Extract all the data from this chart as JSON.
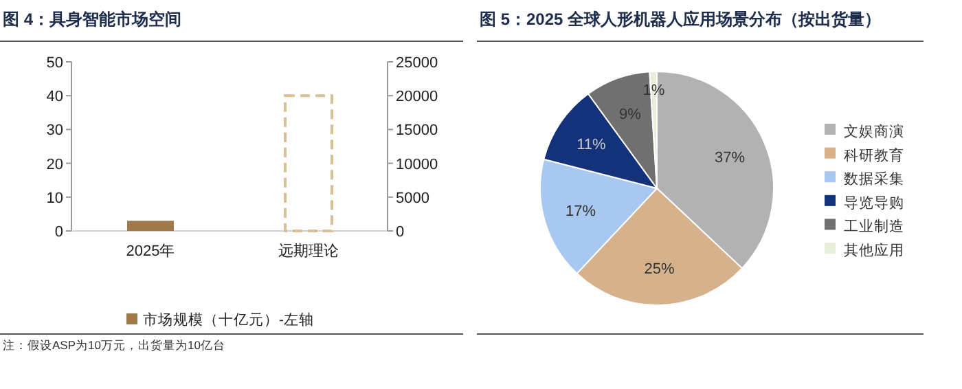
{
  "chart_data": [
    {
      "type": "bar",
      "title": "图 4：具身智能市场空间",
      "categories": [
        "2025年",
        "远期理论"
      ],
      "series": [
        {
          "name": "市场规模（十亿元）-左轴",
          "color": "#a0784a",
          "values": [
            3,
            null
          ]
        },
        {
          "color": "#d9bf94",
          "values": [
            null,
            20000
          ],
          "axis": "y2",
          "line_style": "dashed"
        }
      ],
      "ylim": [
        0,
        50
      ],
      "yticks": [
        0,
        10,
        20,
        30,
        40,
        50
      ],
      "y2lim": [
        0,
        25000
      ],
      "y2ticks": [
        0,
        5000,
        10000,
        15000,
        20000,
        25000
      ],
      "legend": "bottom",
      "annotations": [
        "注：假设ASP为10万元，出货量为10亿台"
      ]
    },
    {
      "type": "pie",
      "title": "图 5：2025 全球人形机器人应用场景分布（按出货量）",
      "categories": [
        "文娱商演",
        "科研教育",
        "数据采集",
        "导览导购",
        "工业制造",
        "其他应用"
      ],
      "values": [
        37,
        25,
        17,
        11,
        9,
        1
      ],
      "colors": [
        "#b2b2b2",
        "#d5b28b",
        "#a8c8ef",
        "#14327a",
        "#707070",
        "#e8eedb"
      ],
      "value_labels": [
        "37%",
        "25%",
        "17%",
        "11%",
        "9%",
        "1%"
      ],
      "legend": "right"
    }
  ]
}
